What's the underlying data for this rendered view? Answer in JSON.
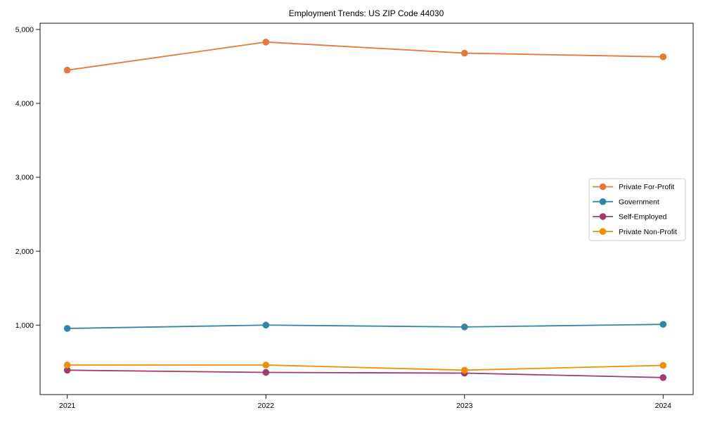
{
  "window": {
    "background": "#ffffff"
  },
  "chart_data": {
    "type": "line",
    "title": "Employment Trends: US ZIP Code 44030",
    "xlabel": "",
    "ylabel": "",
    "categories": [
      "2021",
      "2022",
      "2023",
      "2024"
    ],
    "series": [
      {
        "name": "Private For-Profit",
        "color": "#e8773c",
        "values": [
          4450,
          4830,
          4680,
          4630
        ]
      },
      {
        "name": "Government",
        "color": "#2e86ab",
        "values": [
          955,
          1000,
          975,
          1010
        ]
      },
      {
        "name": "Self-Employed",
        "color": "#a23b72",
        "values": [
          390,
          360,
          350,
          290
        ]
      },
      {
        "name": "Private Non-Profit",
        "color": "#f18f01",
        "values": [
          460,
          460,
          390,
          455
        ]
      }
    ],
    "yticks": {
      "values": [
        1000,
        2000,
        3000,
        4000,
        5000
      ],
      "labels": [
        "1,000",
        "2,000",
        "3,000",
        "4,000",
        "5,000"
      ]
    },
    "ylim": [
      60,
      5085
    ],
    "grid": false,
    "marker": "circle",
    "legend": {
      "position": "center-right",
      "background": "#ffffff",
      "border_color": "#cccccc",
      "entries": [
        "Private For-Profit",
        "Government",
        "Self-Employed",
        "Private Non-Profit"
      ]
    },
    "axis_color": "#1a1a1a",
    "text_color": "#000000"
  }
}
